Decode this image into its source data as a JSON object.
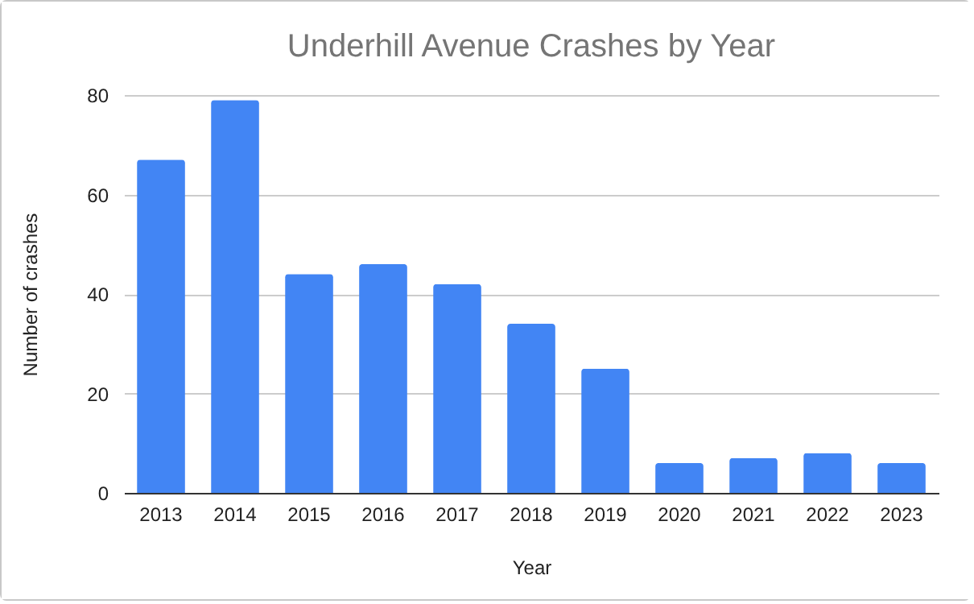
{
  "chart_data": {
    "type": "bar",
    "title": "Underhill Avenue Crashes by Year",
    "xlabel": "Year",
    "ylabel": "Number of crashes",
    "categories": [
      "2013",
      "2014",
      "2015",
      "2016",
      "2017",
      "2018",
      "2019",
      "2020",
      "2021",
      "2022",
      "2023"
    ],
    "values": [
      67,
      79,
      44,
      46,
      42,
      34,
      25,
      6,
      7,
      8,
      6
    ],
    "color": "#4285f4",
    "ylim": [
      0,
      80
    ],
    "yticks": [
      0,
      20,
      40,
      60,
      80
    ],
    "grid": "y"
  }
}
